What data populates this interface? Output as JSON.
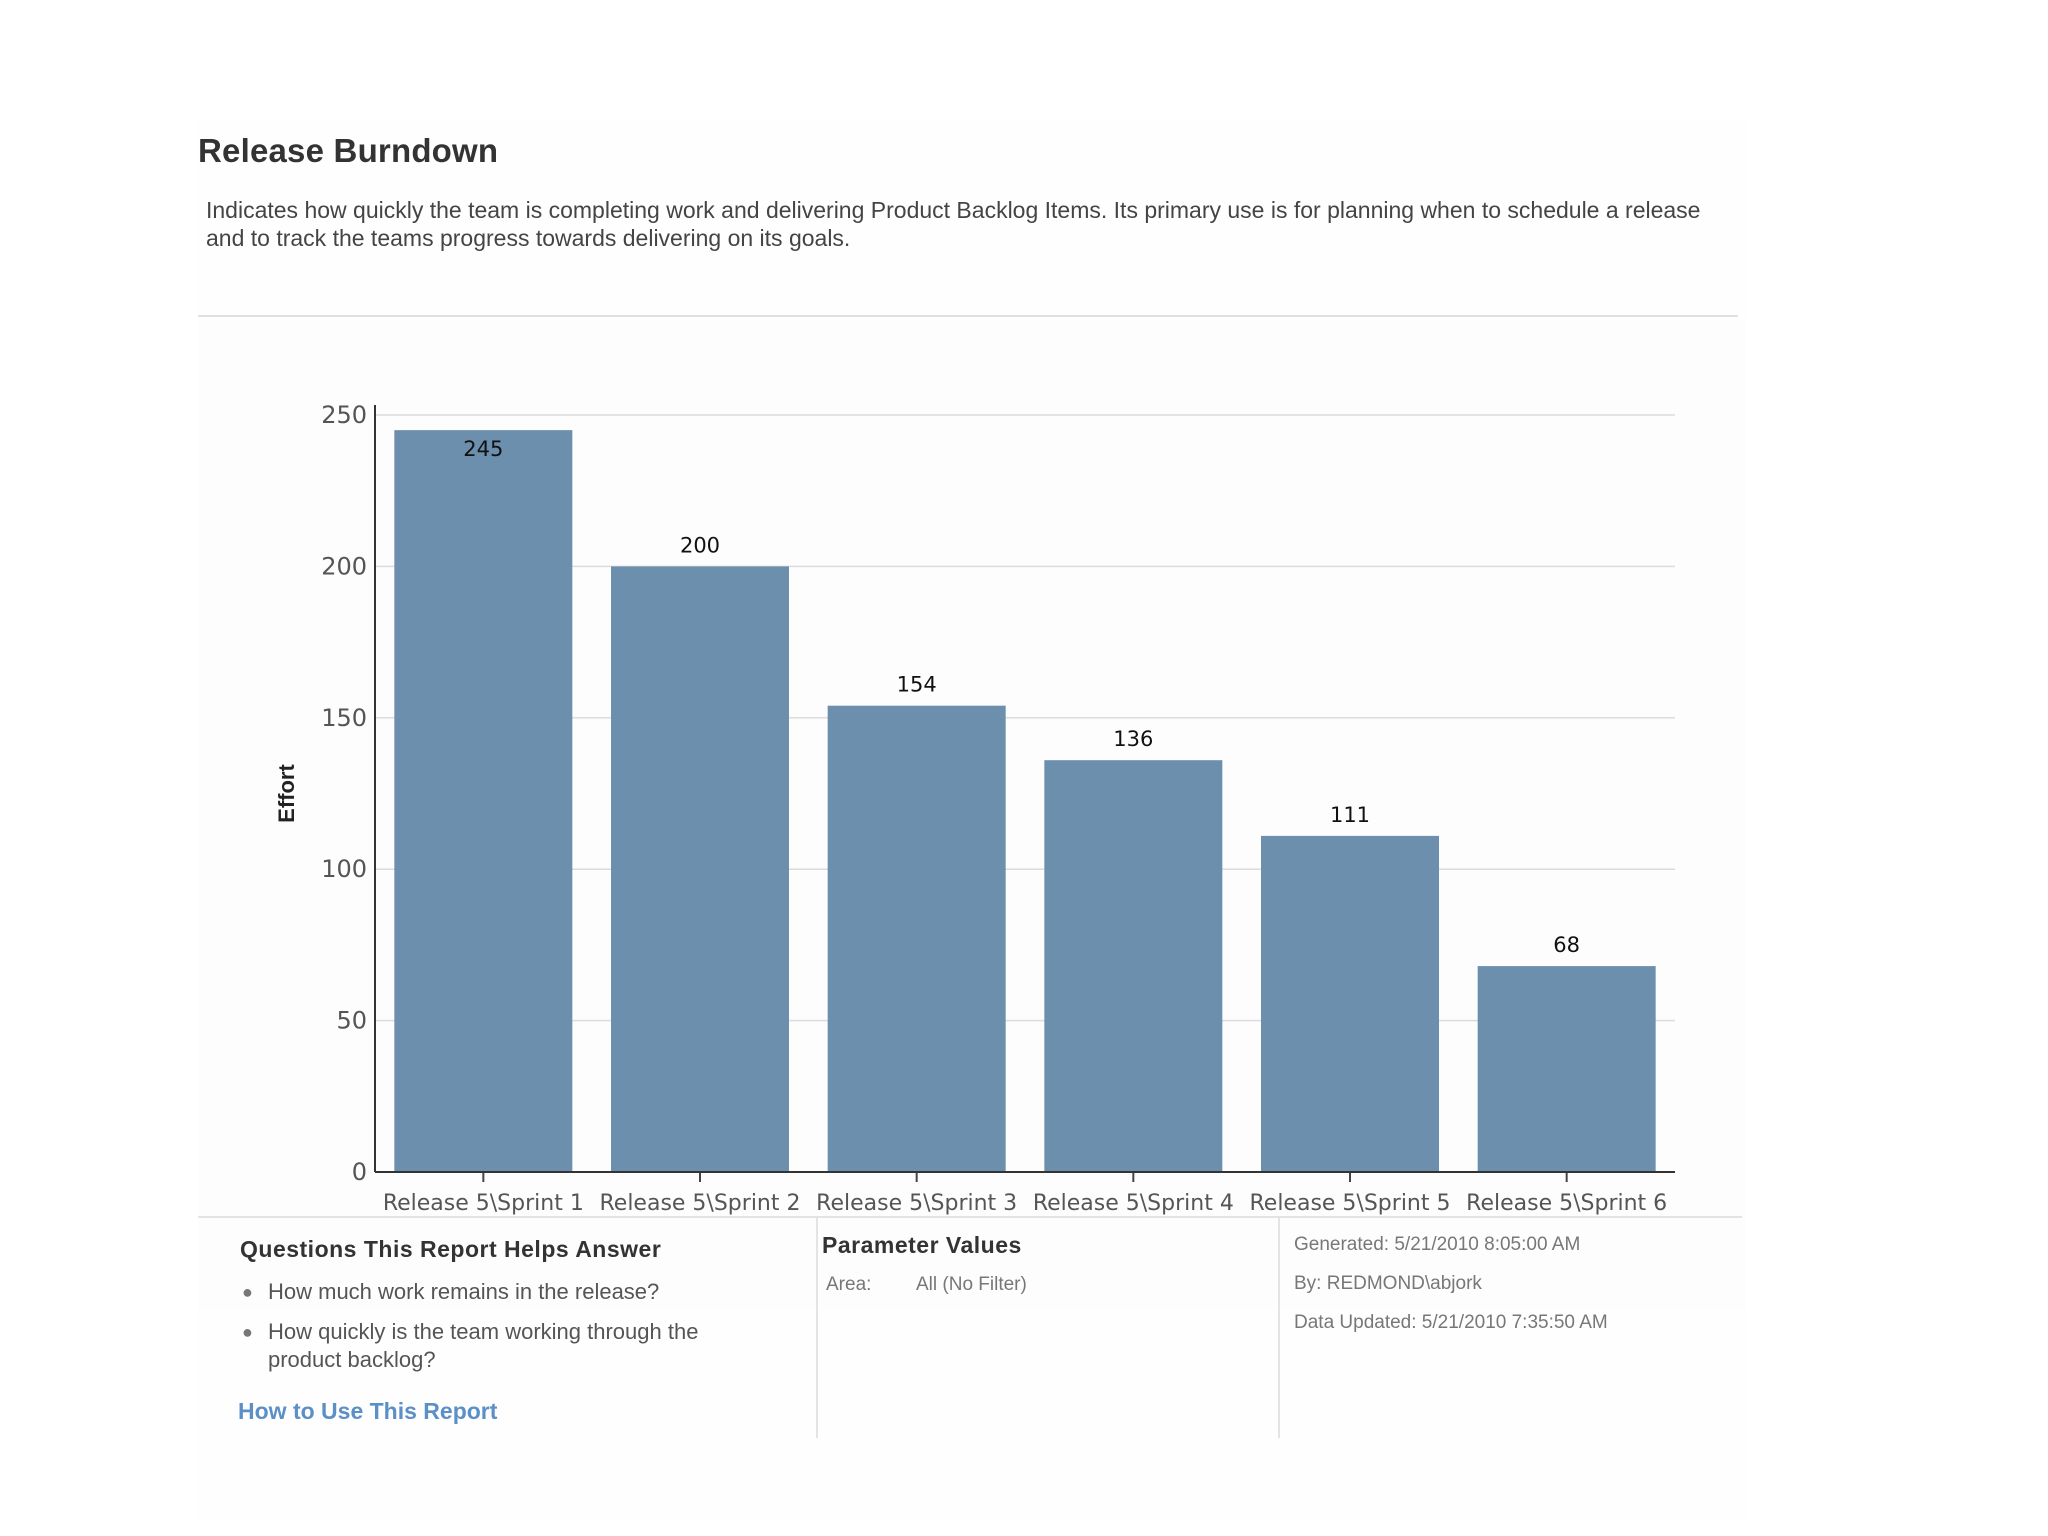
{
  "report": {
    "title": "Release Burndown",
    "description": "Indicates how quickly the team is completing work and delivering Product Backlog Items. Its primary use is for planning when to schedule a release\nand to track the teams progress towards delivering on its goals."
  },
  "chart_data": {
    "type": "bar",
    "title": "",
    "xlabel": "",
    "ylabel": "Effort",
    "ylim": [
      0,
      250
    ],
    "yticks": [
      0,
      50,
      100,
      150,
      200,
      250
    ],
    "categories": [
      "Release 5\\Sprint 1",
      "Release 5\\Sprint 2",
      "Release 5\\Sprint 3",
      "Release 5\\Sprint 4",
      "Release 5\\Sprint 5",
      "Release 5\\Sprint 6"
    ],
    "values": [
      245,
      200,
      154,
      136,
      111,
      68
    ],
    "grid": true,
    "bar_color": "#6b8fac",
    "legend": "none"
  },
  "footer": {
    "questions": {
      "title": "Questions This Report Helps Answer",
      "items": [
        "How much work remains in the release?",
        "How quickly is the team working through the product backlog?"
      ],
      "link": "How to Use This Report"
    },
    "parameters": {
      "title": "Parameter Values",
      "area_label": "Area:",
      "area_value": "All (No Filter)"
    },
    "meta": {
      "generated": "Generated: 5/21/2010 8:05:00 AM",
      "by": "By: REDMOND\\abjork",
      "data_updated": "Data Updated: 5/21/2010 7:35:50 AM"
    }
  },
  "colors": {
    "bar": "#6b8fac",
    "link": "#5b8fc7",
    "title": "#333333"
  }
}
